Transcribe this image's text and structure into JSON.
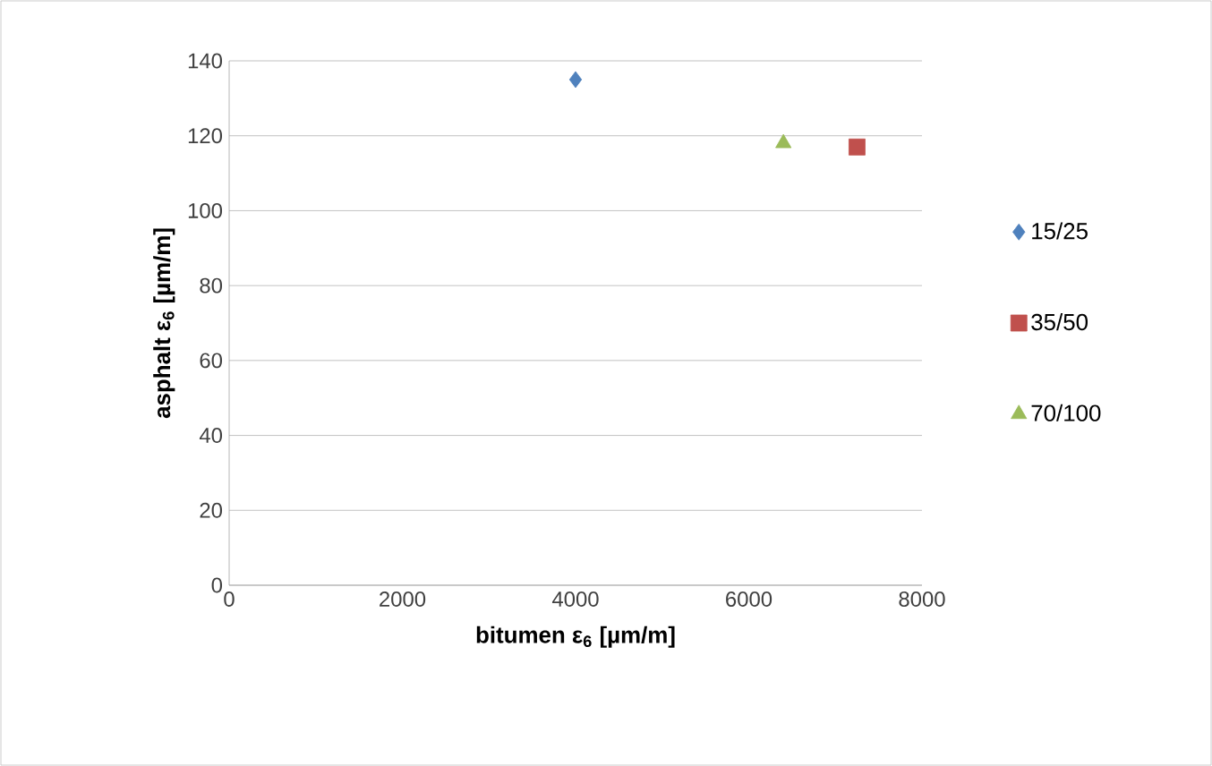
{
  "chart_data": {
    "type": "scatter",
    "xlabel": "**bitumen ε$_{6}$ [µm/m]**",
    "ylabel": "**asphalt ε$_{6}$ [µm/m]**",
    "xlim": [
      0,
      8000
    ],
    "xticks": [
      0,
      2000,
      4000,
      6000,
      8000
    ],
    "ylim": [
      0,
      140
    ],
    "yticks": [
      0,
      20,
      40,
      60,
      80,
      100,
      120,
      140
    ],
    "grid": "y",
    "legend": "right",
    "series": [
      {
        "name": "15/25",
        "color": "#4f81bd",
        "marker": "diamond",
        "x": [
          4000
        ],
        "values": [
          135
        ]
      },
      {
        "name": "35/50",
        "color": "#c0504d",
        "marker": "square",
        "x": [
          7250
        ],
        "values": [
          117
        ]
      },
      {
        "name": "70/100",
        "color": "#9bbb59",
        "marker": "triangle",
        "x": [
          6400
        ],
        "values": [
          118
        ]
      }
    ]
  }
}
